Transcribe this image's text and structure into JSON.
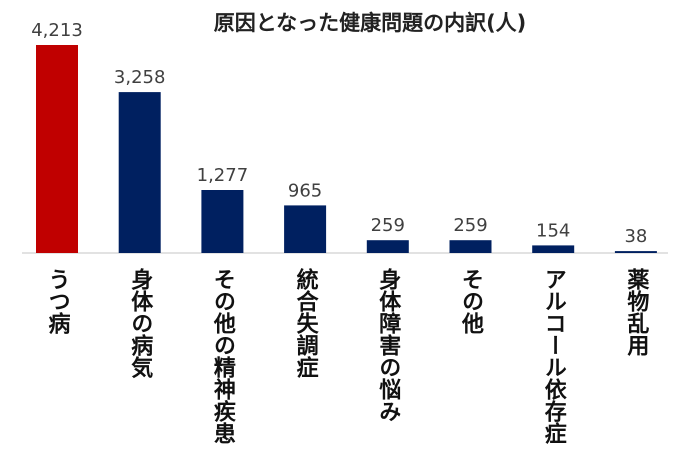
{
  "chart_data": {
    "type": "bar",
    "title": "原因となった健康問題の内訳(人)",
    "categories": [
      "うつ病",
      "身体の病気",
      "その他の精神疾患",
      "統合失調症",
      "身体障害の悩み",
      "その他",
      "アルコール依存症",
      "薬物乱用"
    ],
    "values": [
      4213,
      3258,
      1277,
      965,
      259,
      259,
      154,
      38
    ],
    "value_labels": [
      "4,213",
      "3,258",
      "1,277",
      "965",
      "259",
      "259",
      "154",
      "38"
    ],
    "bar_colors": [
      "#C00000",
      "#002060",
      "#002060",
      "#002060",
      "#002060",
      "#002060",
      "#002060",
      "#002060"
    ],
    "ylim": [
      0,
      4213
    ],
    "xlabel": "",
    "ylabel": "",
    "grid": false,
    "legend": "none"
  }
}
